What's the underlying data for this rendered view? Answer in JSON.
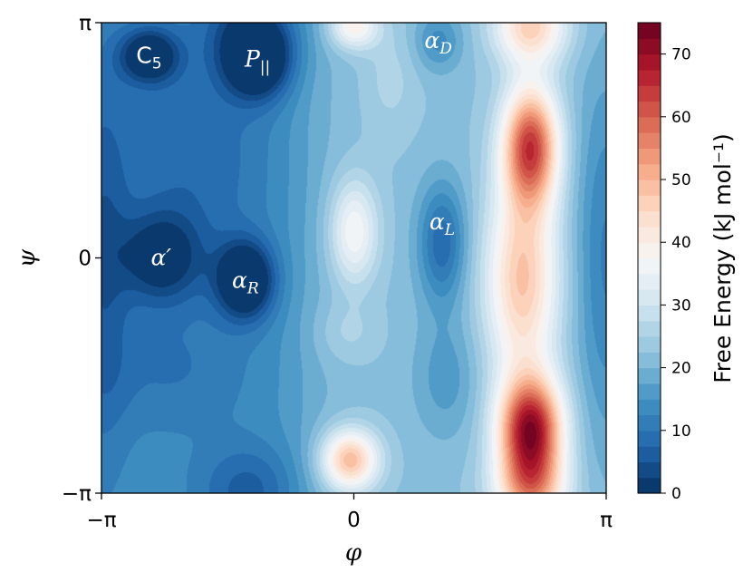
{
  "chart_data": {
    "type": "heatmap",
    "title": "",
    "xlabel": "φ",
    "ylabel": "ψ",
    "xlim": [
      -3.14159,
      3.14159
    ],
    "ylim": [
      -3.14159,
      3.14159
    ],
    "x_ticks": [
      {
        "value": -3.14159,
        "label": "−π"
      },
      {
        "value": 0,
        "label": "0"
      },
      {
        "value": 3.14159,
        "label": "π"
      }
    ],
    "y_ticks": [
      {
        "value": -3.14159,
        "label": "−π"
      },
      {
        "value": 0,
        "label": "0"
      },
      {
        "value": 3.14159,
        "label": "π"
      }
    ],
    "colormap": "RdBu_r",
    "colorbar": {
      "label": "Free Energy (kJ mol⁻¹)",
      "range": [
        0,
        75
      ],
      "ticks": [
        0,
        10,
        20,
        30,
        40,
        50,
        60,
        70
      ],
      "levels": 30
    },
    "region_labels": [
      {
        "name": "C",
        "sub": "5",
        "phi": -2.55,
        "psi": 2.7,
        "color": "#ffffff"
      },
      {
        "name": "P",
        "sub": "||",
        "phi": -1.2,
        "psi": 2.65,
        "color": "#ffffff"
      },
      {
        "name": "α",
        "sub": "D",
        "phi": 1.05,
        "psi": 2.9,
        "color": "#ffffff"
      },
      {
        "name": "α",
        "sub": "L",
        "phi": 1.1,
        "psi": 0.48,
        "color": "#ffffff"
      },
      {
        "name": "α′",
        "sub": "",
        "phi": -2.4,
        "psi": 0.0,
        "color": "#ffffff"
      },
      {
        "name": "α",
        "sub": "R",
        "phi": -1.35,
        "psi": -0.3,
        "color": "#ffffff"
      }
    ]
  }
}
